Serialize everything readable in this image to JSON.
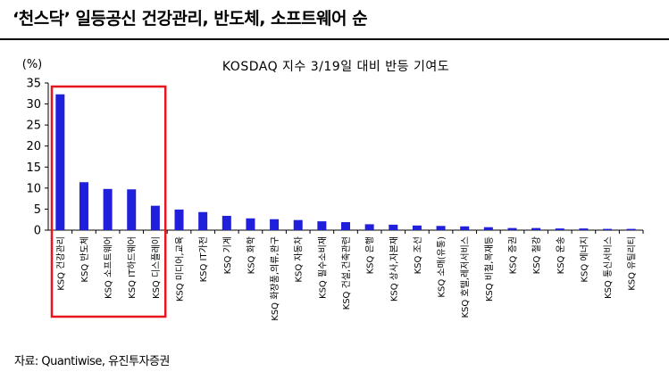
{
  "header": {
    "headline": "‘천스닥’ 일등공신 건강관리, 반도체, 소프트웨어 순"
  },
  "source": "자료: Quantiwise, 유진투자증권",
  "chart_data": {
    "type": "bar",
    "title": "KOSDAQ 지수 3/19일 대비 반등 기여도",
    "ylabel": "(%)",
    "xlabel": "",
    "ylim": [
      0,
      35
    ],
    "yticks": [
      0,
      5,
      10,
      15,
      20,
      25,
      30,
      35
    ],
    "grid": false,
    "bar_color": "#1f1fdc",
    "highlight_color": "#e8141e",
    "highlight_range": [
      0,
      4
    ],
    "categories": [
      "KSQ 건강관리",
      "KSQ 반도체",
      "KSQ 소프트웨어",
      "KSQ IT하드웨어",
      "KSQ 디스플레이",
      "KSQ 미디어,교육",
      "KSQ IT가전",
      "KSQ 기계",
      "KSQ 화학",
      "KSQ 화장품,의류,완구",
      "KSQ 자동차",
      "KSQ 필수소비재",
      "KSQ 건설,건축관련",
      "KSQ 은행",
      "KSQ 상사,자본재",
      "KSQ 조선",
      "KSQ 소매(유통)",
      "KSQ 호텔,레저서비스",
      "KSQ 비철,목재등",
      "KSQ 증권",
      "KSQ 철강",
      "KSQ 운송",
      "KSQ 에너지",
      "KSQ 통신서비스",
      "KSQ 유틸리티"
    ],
    "values": [
      32.3,
      11.4,
      9.8,
      9.7,
      5.8,
      4.9,
      4.3,
      3.4,
      2.8,
      2.6,
      2.4,
      2.1,
      1.9,
      1.4,
      1.3,
      1.1,
      1.0,
      0.9,
      0.7,
      0.5,
      0.5,
      0.4,
      0.4,
      0.3,
      0.3
    ]
  }
}
